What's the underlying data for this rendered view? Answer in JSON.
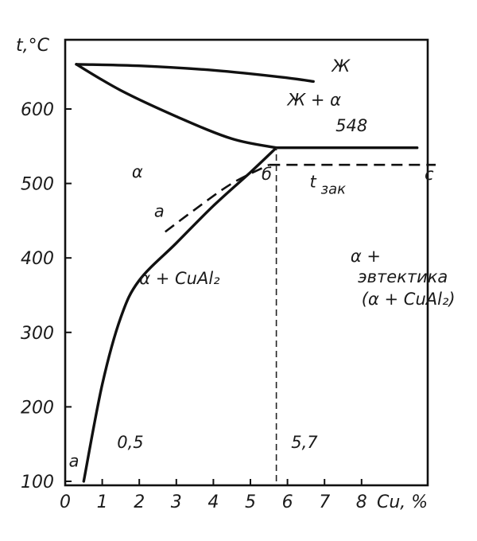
{
  "chart_data": {
    "type": "line",
    "title": "",
    "xlabel": "Cu, %",
    "ylabel": "t,°C",
    "xlim": [
      0,
      9.5
    ],
    "ylim": [
      100,
      700
    ],
    "x_ticks": [
      0,
      1,
      2,
      3,
      4,
      5,
      6,
      7,
      8
    ],
    "x_tick_labels": [
      "0",
      "1",
      "2",
      "3",
      "4",
      "5",
      "6",
      "7",
      "8"
    ],
    "y_ticks": [
      100,
      200,
      300,
      400,
      500,
      600
    ],
    "y_tick_labels": [
      "100",
      "200",
      "300",
      "400",
      "500",
      "600"
    ],
    "grid": false,
    "series": [
      {
        "key": "liquidus",
        "style": "solid",
        "x": [
          0.3,
          2.0,
          4.0,
          5.8,
          6.7
        ],
        "y": [
          660,
          658,
          652,
          643,
          637
        ]
      },
      {
        "key": "solidus",
        "style": "solid",
        "x": [
          0.3,
          1.5,
          3.0,
          4.5,
          5.7
        ],
        "y": [
          660,
          625,
          590,
          560,
          548
        ]
      },
      {
        "key": "eutectic",
        "style": "solid",
        "x": [
          5.7,
          9.5
        ],
        "y": [
          548,
          548
        ]
      },
      {
        "key": "solvus",
        "style": "solid",
        "x": [
          0.5,
          1.0,
          1.5,
          2.0,
          3.0,
          4.0,
          5.0,
          5.7
        ],
        "y": [
          100,
          230,
          320,
          370,
          420,
          470,
          515,
          548
        ]
      },
      {
        "key": "solvus-quenched",
        "style": "dashed",
        "x": [
          2.7,
          3.5,
          4.5,
          5.5
        ],
        "y": [
          435,
          465,
          500,
          525
        ]
      },
      {
        "key": "quench-temperature",
        "style": "dashed",
        "x": [
          5.5,
          10.0
        ],
        "y": [
          525,
          525
        ]
      },
      {
        "key": "composition-5.7",
        "style": "dashed-thin",
        "x": [
          5.7,
          5.7
        ],
        "y": [
          100,
          548
        ]
      }
    ],
    "annotations": [
      {
        "text": "Ж",
        "x": 7.2,
        "y": 650
      },
      {
        "text": "Ж + α",
        "x": 6.0,
        "y": 605
      },
      {
        "text": "548",
        "x": 7.3,
        "y": 570
      },
      {
        "text": "α",
        "x": 1.8,
        "y": 508
      },
      {
        "text": "б",
        "x": 5.3,
        "y": 505
      },
      {
        "text": "c",
        "x": 9.7,
        "y": 505
      },
      {
        "text": "t",
        "x": 6.6,
        "y": 495
      },
      {
        "text": "зак",
        "x": 6.9,
        "y": 486
      },
      {
        "text": "a",
        "x": 2.4,
        "y": 455
      },
      {
        "text": "α + CuAl₂",
        "x": 2.0,
        "y": 365
      },
      {
        "text": "α +",
        "x": 7.7,
        "y": 395
      },
      {
        "text": "эвтектика",
        "x": 7.9,
        "y": 367
      },
      {
        "text": "(α + CuAl₂)",
        "x": 8.0,
        "y": 337
      },
      {
        "text": "0,5",
        "x": 1.4,
        "y": 145
      },
      {
        "text": "5,7",
        "x": 6.1,
        "y": 145
      },
      {
        "text": "a",
        "x": 0.1,
        "y": 120
      }
    ]
  }
}
